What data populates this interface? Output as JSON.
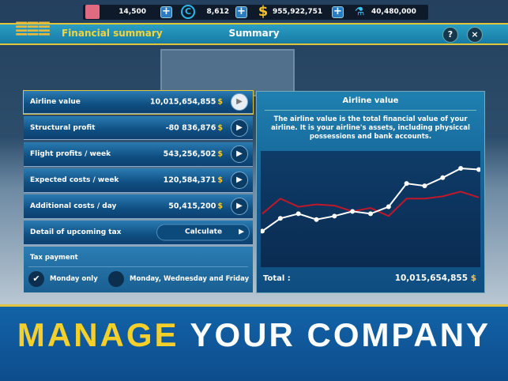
{
  "resources": {
    "tickets": "14,500",
    "credits": "8,612",
    "money": "955,922,751",
    "research": "40,480,000",
    "plus": "+"
  },
  "header": {
    "section_title": "Financial summary",
    "title": "Summary",
    "help": "?",
    "close": "×"
  },
  "rows": [
    {
      "label": "Airline value",
      "value": "10,015,654,855",
      "currency": "$"
    },
    {
      "label": "Structural profit",
      "value": "-80 836,876",
      "currency": "$"
    },
    {
      "label": "Flight profits / week",
      "value": "543,256,502",
      "currency": "$"
    },
    {
      "label": "Expected costs / week",
      "value": "120,584,371",
      "currency": "$"
    },
    {
      "label": "Additional costs / day",
      "value": "50,415,200",
      "currency": "$"
    }
  ],
  "tax_detail": {
    "label": "Detail of upcoming tax",
    "button": "Calculate"
  },
  "tax_payment": {
    "label": "Tax payment",
    "option1": "Monday only",
    "option2": "Monday, Wednesday and Friday",
    "selected": "Monday only"
  },
  "detail_panel": {
    "title": "Airline value",
    "description": "The airline value is the total financial value of your airline. It is your airline's assets, including physiccal possessions and bank accounts.",
    "total_label": "Total :",
    "total_value": "10,015,654,855",
    "currency": "$"
  },
  "chart_data": {
    "type": "line",
    "ylim": [
      0,
      100
    ],
    "grid": false,
    "series": [
      {
        "color": "#ffffff",
        "values": [
          31,
          42,
          46,
          41,
          44,
          48,
          46,
          52,
          72,
          70,
          77,
          85,
          84
        ]
      },
      {
        "color": "#c0182a",
        "values": [
          46,
          59,
          52,
          54,
          53,
          48,
          51,
          44,
          59,
          59,
          61,
          65,
          60
        ]
      }
    ]
  },
  "banner": {
    "word1": "MANAGE",
    "word2": "YOUR COMPANY",
    "color1": "#f5d02a"
  }
}
